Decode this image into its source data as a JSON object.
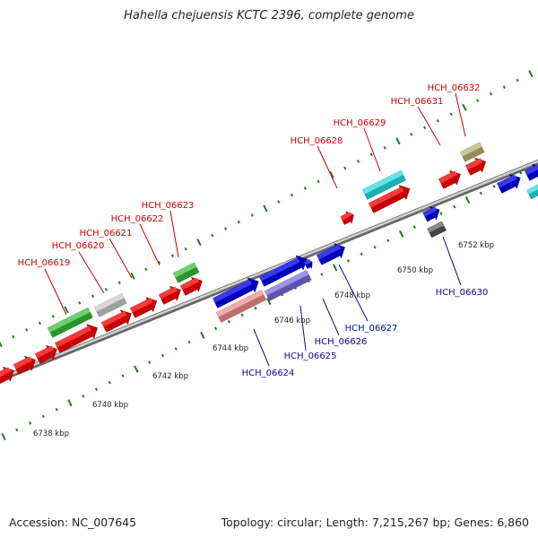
{
  "title": "Hahella chejuensis KCTC 2396, complete genome",
  "footer": {
    "accession": "Accession: NC_007645",
    "topology": "Topology: circular; Length: 7,215,267 bp; Genes: 6,860"
  },
  "colors": {
    "forward_label": "#cc0000",
    "reverse_label": "#0a0a99",
    "backbone": "#8a8a8a",
    "tick": "#1f7a1f"
  },
  "kbp_labels": [
    "6738 kbp",
    "6740 kbp",
    "6742 kbp",
    "6744 kbp",
    "6746 kbp",
    "6748 kbp",
    "6750 kbp",
    "6752 kbp"
  ],
  "forward_genes": [
    {
      "name": "HCH_06619",
      "color": "#33bb33"
    },
    {
      "name": "HCH_06620",
      "color": "#ff0000"
    },
    {
      "name": "HCH_06621",
      "color": "#c8c8c8"
    },
    {
      "name": "HCH_06622",
      "color": "#ff0000"
    },
    {
      "name": "HCH_06623",
      "color": "#33bb33"
    },
    {
      "name": "HCH_06628",
      "color": "#ff0000"
    },
    {
      "name": "HCH_06629",
      "color": "#22dddd"
    },
    {
      "name": "HCH_06631",
      "color": "#ff0000"
    },
    {
      "name": "HCH_06632",
      "color": "#b5b06a"
    }
  ],
  "reverse_genes": [
    {
      "name": "HCH_06624",
      "color": "#ee8888"
    },
    {
      "name": "HCH_06625",
      "color": "#7766dd"
    },
    {
      "name": "HCH_06626",
      "color": "#0000ee"
    },
    {
      "name": "HCH_06627",
      "color": "#0000ee"
    },
    {
      "name": "HCH_06630",
      "color": "#555555"
    }
  ]
}
